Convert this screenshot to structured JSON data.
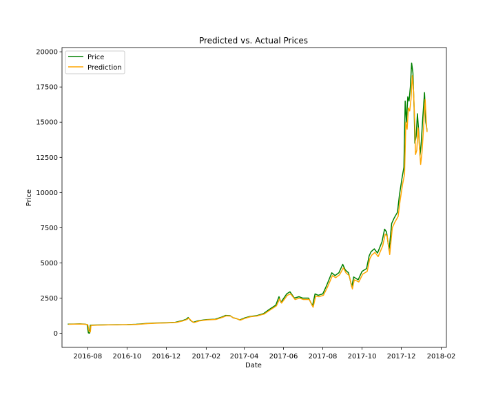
{
  "chart_data": {
    "type": "line",
    "title": "Predicted vs. Actual Prices",
    "xlabel": "Date",
    "ylabel": "Price",
    "xlim": [
      "2016-06-22",
      "2018-02-09"
    ],
    "ylim": [
      -1000,
      20300
    ],
    "x_ticks": [
      "2016-08",
      "2016-10",
      "2016-12",
      "2017-02",
      "2017-04",
      "2017-06",
      "2017-08",
      "2017-10",
      "2017-12",
      "2018-02"
    ],
    "y_ticks": [
      0,
      2500,
      5000,
      7500,
      10000,
      12500,
      15000,
      17500,
      20000
    ],
    "grid": false,
    "legend_position": "upper-left",
    "series": [
      {
        "name": "Price",
        "color": "#008000",
        "points": [
          [
            "2016-07-01",
            650
          ],
          [
            "2016-07-10",
            660
          ],
          [
            "2016-07-20",
            670
          ],
          [
            "2016-07-27",
            650
          ],
          [
            "2016-07-31",
            620
          ],
          [
            "2016-08-02",
            30
          ],
          [
            "2016-08-04",
            10
          ],
          [
            "2016-08-05",
            580
          ],
          [
            "2016-08-15",
            590
          ],
          [
            "2016-09-01",
            605
          ],
          [
            "2016-09-15",
            610
          ],
          [
            "2016-10-01",
            615
          ],
          [
            "2016-10-15",
            640
          ],
          [
            "2016-11-01",
            700
          ],
          [
            "2016-11-15",
            730
          ],
          [
            "2016-12-01",
            750
          ],
          [
            "2016-12-15",
            780
          ],
          [
            "2016-12-25",
            890
          ],
          [
            "2017-01-01",
            1000
          ],
          [
            "2017-01-04",
            1120
          ],
          [
            "2017-01-08",
            900
          ],
          [
            "2017-01-12",
            780
          ],
          [
            "2017-01-20",
            900
          ],
          [
            "2017-02-01",
            970
          ],
          [
            "2017-02-15",
            1000
          ],
          [
            "2017-02-25",
            1150
          ],
          [
            "2017-03-03",
            1270
          ],
          [
            "2017-03-10",
            1250
          ],
          [
            "2017-03-15",
            1100
          ],
          [
            "2017-03-20",
            1050
          ],
          [
            "2017-03-25",
            950
          ],
          [
            "2017-04-01",
            1080
          ],
          [
            "2017-04-10",
            1200
          ],
          [
            "2017-04-20",
            1250
          ],
          [
            "2017-05-01",
            1400
          ],
          [
            "2017-05-10",
            1700
          ],
          [
            "2017-05-20",
            2000
          ],
          [
            "2017-05-25",
            2600
          ],
          [
            "2017-05-28",
            2200
          ],
          [
            "2017-06-06",
            2800
          ],
          [
            "2017-06-11",
            2950
          ],
          [
            "2017-06-18",
            2500
          ],
          [
            "2017-06-25",
            2600
          ],
          [
            "2017-07-01",
            2500
          ],
          [
            "2017-07-10",
            2500
          ],
          [
            "2017-07-16",
            1950
          ],
          [
            "2017-07-20",
            2800
          ],
          [
            "2017-07-25",
            2700
          ],
          [
            "2017-08-01",
            2800
          ],
          [
            "2017-08-07",
            3400
          ],
          [
            "2017-08-15",
            4300
          ],
          [
            "2017-08-20",
            4100
          ],
          [
            "2017-08-26",
            4300
          ],
          [
            "2017-09-01",
            4900
          ],
          [
            "2017-09-05",
            4500
          ],
          [
            "2017-09-10",
            4300
          ],
          [
            "2017-09-15",
            3300
          ],
          [
            "2017-09-18",
            4000
          ],
          [
            "2017-09-25",
            3800
          ],
          [
            "2017-10-01",
            4400
          ],
          [
            "2017-10-08",
            4600
          ],
          [
            "2017-10-12",
            5500
          ],
          [
            "2017-10-15",
            5800
          ],
          [
            "2017-10-20",
            6000
          ],
          [
            "2017-10-25",
            5700
          ],
          [
            "2017-11-01",
            6500
          ],
          [
            "2017-11-05",
            7400
          ],
          [
            "2017-11-08",
            7200
          ],
          [
            "2017-11-12",
            5900
          ],
          [
            "2017-11-16",
            7800
          ],
          [
            "2017-11-20",
            8200
          ],
          [
            "2017-11-25",
            8600
          ],
          [
            "2017-11-28",
            9800
          ],
          [
            "2017-12-02",
            11000
          ],
          [
            "2017-12-05",
            11800
          ],
          [
            "2017-12-07",
            16500
          ],
          [
            "2017-12-09",
            15000
          ],
          [
            "2017-12-11",
            16800
          ],
          [
            "2017-12-13",
            16500
          ],
          [
            "2017-12-15",
            17500
          ],
          [
            "2017-12-17",
            19200
          ],
          [
            "2017-12-19",
            18500
          ],
          [
            "2017-12-21",
            15800
          ],
          [
            "2017-12-22",
            13500
          ],
          [
            "2017-12-24",
            14000
          ],
          [
            "2017-12-26",
            15600
          ],
          [
            "2017-12-28",
            14300
          ],
          [
            "2017-12-30",
            12600
          ],
          [
            "2018-01-01",
            13600
          ],
          [
            "2018-01-03",
            15100
          ],
          [
            "2018-01-06",
            17100
          ],
          [
            "2018-01-08",
            15000
          ],
          [
            "2018-01-10",
            14400
          ]
        ]
      },
      {
        "name": "Prediction",
        "color": "#ffa500",
        "points": [
          [
            "2016-07-02",
            640
          ],
          [
            "2016-07-11",
            650
          ],
          [
            "2016-07-21",
            660
          ],
          [
            "2016-07-28",
            640
          ],
          [
            "2016-08-01",
            610
          ],
          [
            "2016-08-03",
            150
          ],
          [
            "2016-08-05",
            100
          ],
          [
            "2016-08-06",
            560
          ],
          [
            "2016-08-16",
            580
          ],
          [
            "2016-09-02",
            595
          ],
          [
            "2016-09-16",
            600
          ],
          [
            "2016-10-02",
            610
          ],
          [
            "2016-10-16",
            630
          ],
          [
            "2016-11-02",
            690
          ],
          [
            "2016-11-16",
            720
          ],
          [
            "2016-12-02",
            740
          ],
          [
            "2016-12-16",
            770
          ],
          [
            "2016-12-26",
            870
          ],
          [
            "2017-01-02",
            980
          ],
          [
            "2017-01-05",
            1080
          ],
          [
            "2017-01-09",
            880
          ],
          [
            "2017-01-13",
            760
          ],
          [
            "2017-01-21",
            880
          ],
          [
            "2017-02-02",
            950
          ],
          [
            "2017-02-16",
            980
          ],
          [
            "2017-02-26",
            1130
          ],
          [
            "2017-03-04",
            1240
          ],
          [
            "2017-03-11",
            1220
          ],
          [
            "2017-03-16",
            1080
          ],
          [
            "2017-03-21",
            1030
          ],
          [
            "2017-03-26",
            930
          ],
          [
            "2017-04-02",
            1060
          ],
          [
            "2017-04-11",
            1180
          ],
          [
            "2017-04-21",
            1230
          ],
          [
            "2017-05-02",
            1370
          ],
          [
            "2017-05-11",
            1650
          ],
          [
            "2017-05-21",
            1950
          ],
          [
            "2017-05-26",
            2450
          ],
          [
            "2017-05-29",
            2150
          ],
          [
            "2017-06-07",
            2700
          ],
          [
            "2017-06-12",
            2800
          ],
          [
            "2017-06-19",
            2400
          ],
          [
            "2017-06-26",
            2500
          ],
          [
            "2017-07-02",
            2400
          ],
          [
            "2017-07-11",
            2400
          ],
          [
            "2017-07-17",
            1850
          ],
          [
            "2017-07-21",
            2650
          ],
          [
            "2017-07-26",
            2600
          ],
          [
            "2017-08-02",
            2700
          ],
          [
            "2017-08-08",
            3250
          ],
          [
            "2017-08-16",
            4100
          ],
          [
            "2017-08-21",
            3950
          ],
          [
            "2017-08-27",
            4150
          ],
          [
            "2017-09-02",
            4650
          ],
          [
            "2017-09-06",
            4300
          ],
          [
            "2017-09-11",
            4100
          ],
          [
            "2017-09-16",
            3150
          ],
          [
            "2017-09-19",
            3800
          ],
          [
            "2017-09-26",
            3650
          ],
          [
            "2017-10-02",
            4200
          ],
          [
            "2017-10-09",
            4400
          ],
          [
            "2017-10-13",
            5300
          ],
          [
            "2017-10-16",
            5550
          ],
          [
            "2017-10-21",
            5750
          ],
          [
            "2017-10-26",
            5450
          ],
          [
            "2017-11-02",
            6200
          ],
          [
            "2017-11-06",
            7050
          ],
          [
            "2017-11-09",
            6900
          ],
          [
            "2017-11-13",
            5600
          ],
          [
            "2017-11-17",
            7500
          ],
          [
            "2017-11-21",
            7900
          ],
          [
            "2017-11-26",
            8300
          ],
          [
            "2017-11-29",
            9400
          ],
          [
            "2017-12-03",
            10600
          ],
          [
            "2017-12-06",
            11300
          ],
          [
            "2017-12-08",
            15000
          ],
          [
            "2017-12-10",
            14500
          ],
          [
            "2017-12-12",
            16000
          ],
          [
            "2017-12-14",
            15800
          ],
          [
            "2017-12-16",
            16600
          ],
          [
            "2017-12-18",
            18300
          ],
          [
            "2017-12-20",
            17200
          ],
          [
            "2017-12-22",
            14800
          ],
          [
            "2017-12-23",
            12700
          ],
          [
            "2017-12-25",
            13000
          ],
          [
            "2017-12-27",
            14600
          ],
          [
            "2017-12-29",
            13300
          ],
          [
            "2017-12-31",
            12000
          ],
          [
            "2018-01-02",
            12800
          ],
          [
            "2018-01-04",
            14200
          ],
          [
            "2018-01-07",
            16600
          ],
          [
            "2018-01-09",
            14800
          ],
          [
            "2018-01-10",
            14300
          ]
        ]
      }
    ]
  }
}
